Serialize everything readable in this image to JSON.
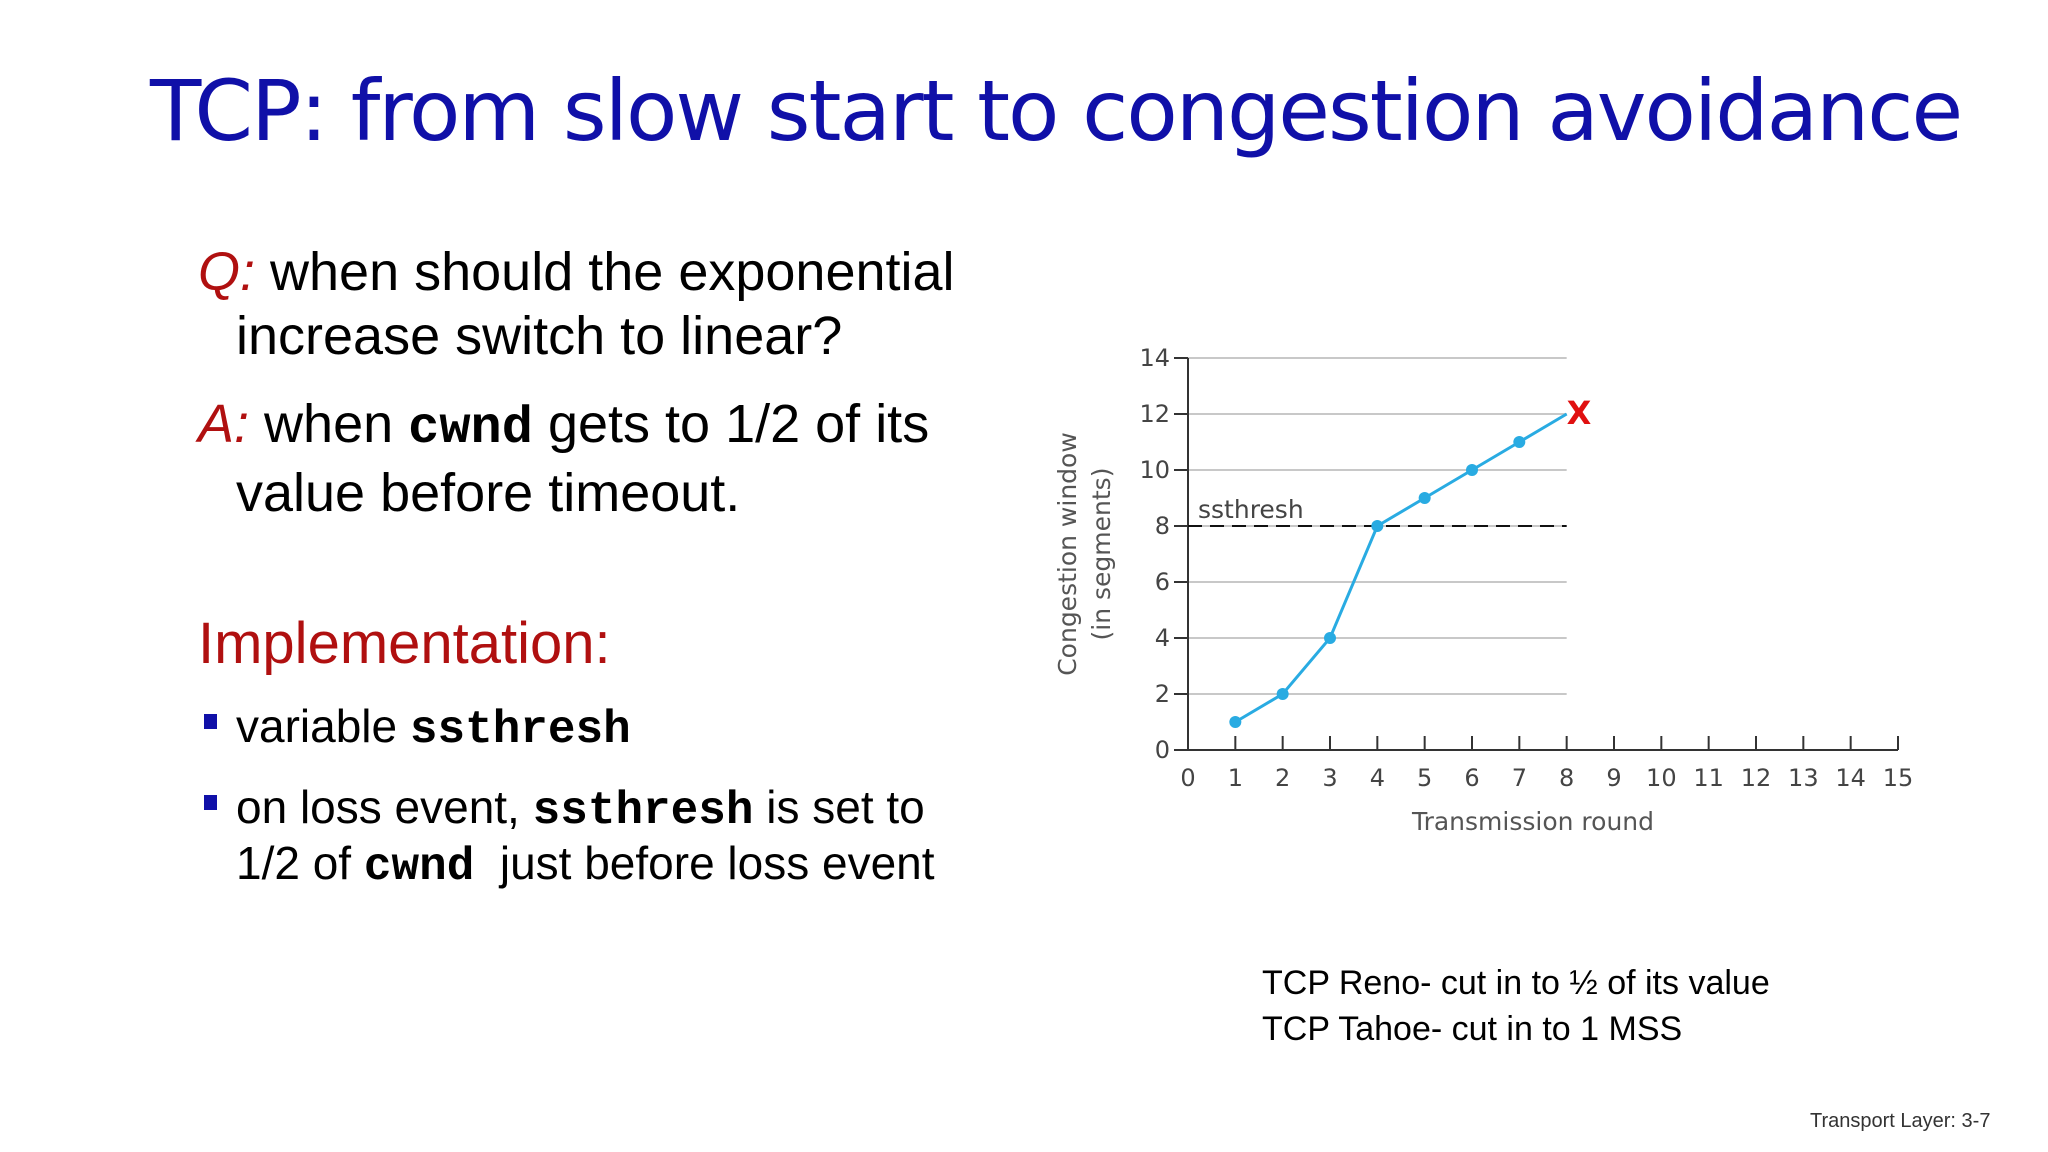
{
  "title": "TCP: from slow start to congestion avoidance",
  "question": {
    "prefix": "Q:",
    "line1": " when should the exponential",
    "line2": "increase switch to linear?"
  },
  "answer": {
    "prefix": "A:",
    "before_code": " when ",
    "code": "cwnd",
    "after_code": " gets to 1/2 of its",
    "line2": "value before timeout."
  },
  "implementation": {
    "heading": "Implementation:",
    "bullet1": {
      "text": "variable ",
      "code": "ssthresh"
    },
    "bullet2": {
      "text1": "on loss event, ",
      "code1": "ssthresh",
      "text2": " is set to",
      "text3": "1/2 of ",
      "code2": "cwnd",
      "text4": "  just before loss event"
    }
  },
  "chart_data": {
    "type": "line",
    "xlabel": "Transmission round",
    "ylabel_line1": "Congestion window",
    "ylabel_line2": "(in segments)",
    "xlim": [
      0,
      15
    ],
    "ylim": [
      0,
      14
    ],
    "x_ticks": [
      0,
      1,
      2,
      3,
      4,
      5,
      6,
      7,
      8,
      9,
      10,
      11,
      12,
      13,
      14,
      15
    ],
    "y_ticks": [
      0,
      2,
      4,
      6,
      8,
      10,
      12,
      14
    ],
    "grid": true,
    "series": [
      {
        "x": [
          1,
          2,
          3,
          4,
          5,
          6,
          7,
          8
        ],
        "y": [
          1,
          2,
          4,
          8,
          9,
          10,
          11,
          12
        ]
      }
    ],
    "ssthresh": {
      "label": "ssthresh",
      "y": 8
    },
    "loss_marker": {
      "label": "X",
      "x": 8,
      "y": 12
    },
    "colors": {
      "series": "#29abe2",
      "loss": "#e01010",
      "grid": "#c8c8c8",
      "axis": "#333333"
    }
  },
  "notes": {
    "line1": "TCP Reno- cut in to ½ of its value",
    "line2": "TCP Tahoe- cut in to 1 MSS"
  },
  "footer": "Transport Layer: 3-7",
  "colors": {
    "title": "#1010a8",
    "accent_red": "#b01010",
    "bullet": "#1010a8"
  }
}
